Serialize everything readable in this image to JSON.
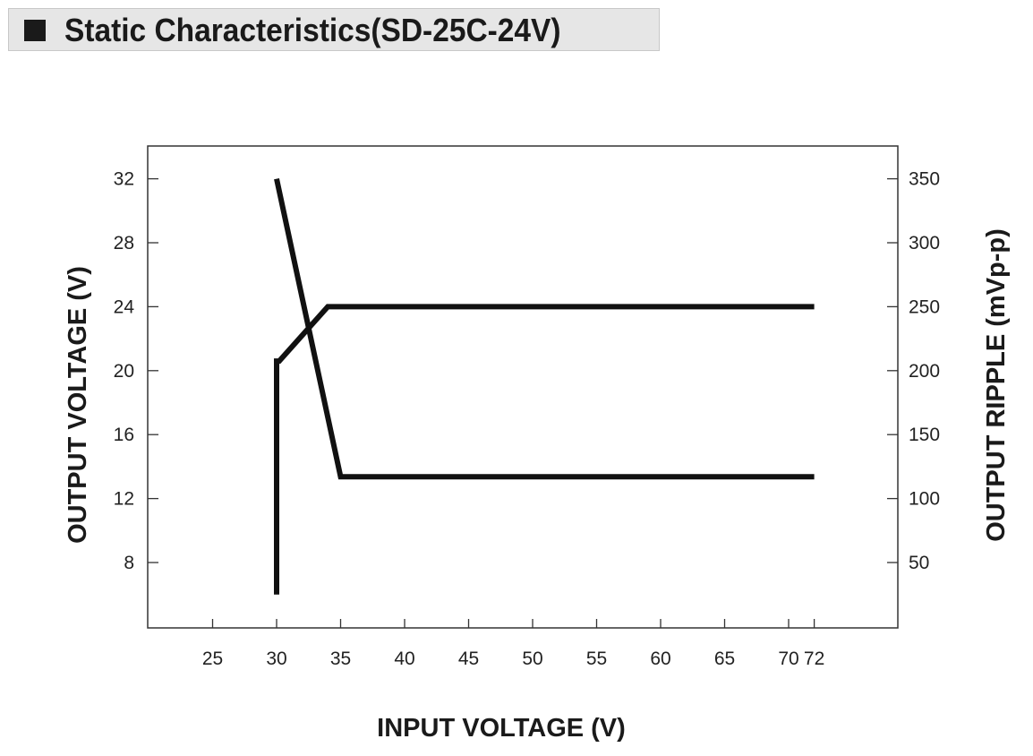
{
  "header": {
    "title": "Static Characteristics(SD-25C-24V)"
  },
  "colors": {
    "background": "#ffffff",
    "title_bar": "#e6e6e6",
    "line": "#111111",
    "frame": "#333333"
  },
  "chart_data": {
    "type": "line",
    "title": "Static Characteristics(SD-25C-24V)",
    "xlabel": "INPUT VOLTAGE (V)",
    "ylabel_left": "OUTPUT VOLTAGE (V)",
    "ylabel_right": "OUTPUT RIPPLE (mVp-p)",
    "x_categories": [
      "25",
      "30",
      "35",
      "40",
      "45",
      "50",
      "55",
      "60",
      "65",
      "70",
      "72"
    ],
    "y_left_ticks": [
      8,
      12,
      16,
      20,
      24,
      28,
      32
    ],
    "y_right_ticks": [
      50,
      100,
      150,
      200,
      250,
      300,
      350
    ],
    "y_left_range": [
      4,
      34
    ],
    "y_right_range": [
      0,
      375
    ],
    "grid": false,
    "series": [
      {
        "axis": "left",
        "x": [
          "30",
          "30",
          "30.2",
          "34",
          "72"
        ],
        "y": [
          6,
          20.6,
          20.6,
          24,
          24
        ]
      },
      {
        "axis": "right",
        "x": [
          "30",
          "35",
          "72"
        ],
        "y": [
          350,
          117,
          117
        ]
      }
    ]
  }
}
